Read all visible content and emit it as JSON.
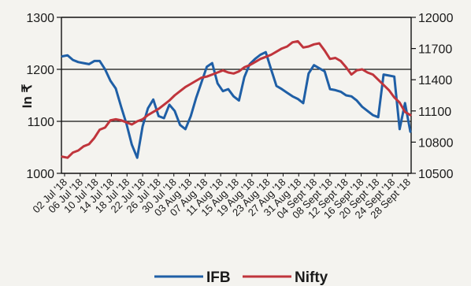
{
  "chart_data": {
    "type": "line",
    "title": "",
    "ylabel": "In ₹",
    "y_left": {
      "range": [
        1000,
        1300
      ],
      "ticks": [
        "1000",
        "1100",
        "1200",
        "1300"
      ]
    },
    "y_right": {
      "range": [
        10500,
        12000
      ],
      "ticks": [
        "10500",
        "10800",
        "11100",
        "11400",
        "11700",
        "12000"
      ]
    },
    "x_ticks": [
      "02 Jul '18",
      "06 Jul '18",
      "10 Jul '18",
      "14 Jul '18",
      "18 Jul '18",
      "22 Jul '18",
      "26 Jul '18",
      "30 Jul '18",
      "03 Aug '18",
      "07 Aug '18",
      "11 Aug '18",
      "15 Aug '18",
      "19 Aug '18",
      "23 Aug '18",
      "27 Aug '18",
      "31 Aug '18",
      "04 Sept '18",
      "08 Sept '18",
      "12 Sept '18",
      "16 Sept '18",
      "20 Sept '18",
      "24 Sept '18",
      "28 Sept '18"
    ],
    "grid_y_left": [
      1100,
      1200
    ],
    "legend_position": "bottom",
    "series": [
      {
        "name": "IFB",
        "axis": "left",
        "color": "#1f5fa6",
        "values": [
          1225,
          1227,
          1218,
          1214,
          1212,
          1210,
          1216,
          1216,
          1200,
          1178,
          1163,
          1128,
          1095,
          1055,
          1030,
          1090,
          1125,
          1142,
          1110,
          1106,
          1132,
          1120,
          1093,
          1085,
          1110,
          1145,
          1175,
          1205,
          1212,
          1173,
          1158,
          1162,
          1148,
          1140,
          1185,
          1210,
          1220,
          1228,
          1233,
          1200,
          1168,
          1162,
          1155,
          1148,
          1143,
          1135,
          1192,
          1208,
          1202,
          1196,
          1162,
          1160,
          1157,
          1150,
          1148,
          1140,
          1128,
          1120,
          1112,
          1108,
          1190,
          1188,
          1186,
          1085,
          1135,
          1080
        ]
      },
      {
        "name": "Nifty",
        "axis": "right",
        "color": "#c0353c",
        "values": [
          10660,
          10650,
          10700,
          10720,
          10760,
          10780,
          10840,
          10920,
          10940,
          11010,
          11020,
          11010,
          10990,
          10970,
          11000,
          11020,
          11060,
          11090,
          11120,
          11160,
          11200,
          11250,
          11290,
          11330,
          11360,
          11390,
          11420,
          11430,
          11450,
          11470,
          11490,
          11470,
          11460,
          11480,
          11520,
          11540,
          11570,
          11600,
          11620,
          11640,
          11670,
          11700,
          11720,
          11760,
          11770,
          11710,
          11720,
          11740,
          11750,
          11680,
          11600,
          11610,
          11580,
          11520,
          11450,
          11490,
          11500,
          11470,
          11450,
          11400,
          11350,
          11300,
          11230,
          11180,
          11090,
          11060
        ]
      }
    ]
  }
}
